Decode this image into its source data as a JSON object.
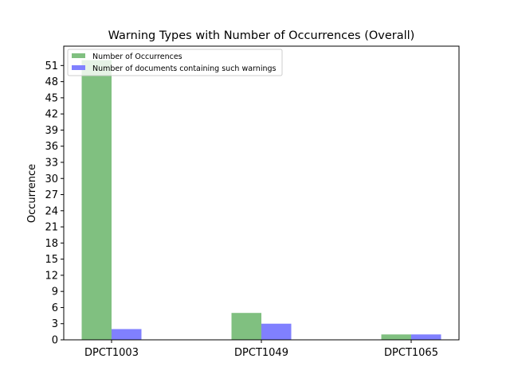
{
  "chart_data": {
    "type": "bar",
    "title": "Warning Types with Number of Occurrences (Overall)",
    "xlabel": "",
    "ylabel": "Occurrence",
    "categories": [
      "DPCT1003",
      "DPCT1049",
      "DPCT1065"
    ],
    "series": [
      {
        "name": "Number of Occurrences",
        "values": [
          52,
          5,
          1
        ],
        "color": "#80c080"
      },
      {
        "name": "Number of documents containing such warnings",
        "values": [
          2,
          3,
          1
        ],
        "color": "#8080ff"
      }
    ],
    "ylim": [
      0,
      54.6
    ],
    "yticks": [
      0,
      3,
      6,
      9,
      12,
      15,
      18,
      21,
      24,
      27,
      30,
      33,
      36,
      39,
      42,
      45,
      48,
      51
    ],
    "grid": false,
    "legend": "top-left"
  }
}
